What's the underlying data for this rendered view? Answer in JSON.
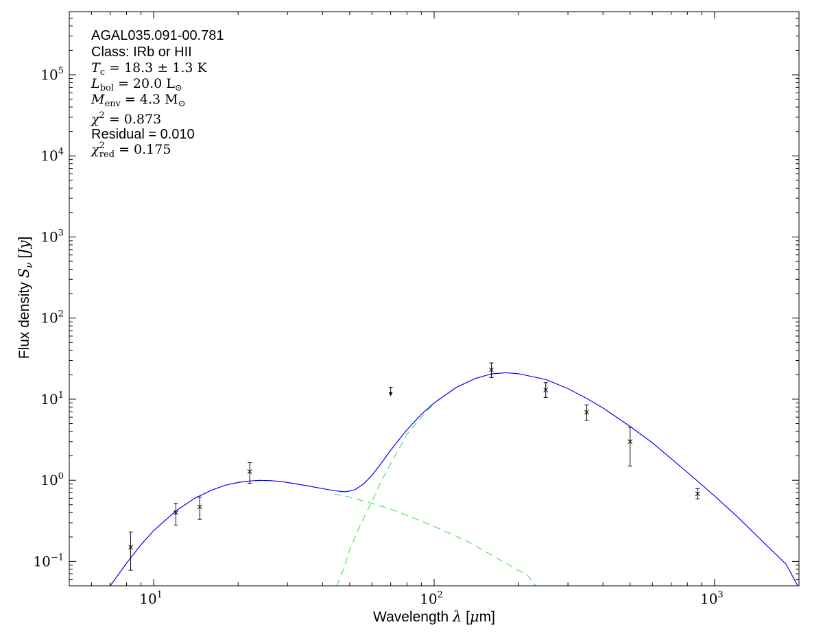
{
  "chart_data": {
    "type": "line",
    "x_scale": "log",
    "y_scale": "log",
    "xlim": [
      5,
      2000
    ],
    "ylim": [
      0.05,
      600000
    ],
    "grid": false,
    "xlabel": {
      "prefix": "Wavelength ",
      "symbol": "λ",
      "suffix": " [",
      "unit_greek": "μ",
      "unit_rest": "m]"
    },
    "ylabel": {
      "prefix": "Flux density ",
      "symbol": "S",
      "sub": "ν",
      "suffix": " [",
      "unit": "Jy",
      "close": "]"
    },
    "x_ticks": [
      {
        "value": 10,
        "base": "10",
        "exp": "1"
      },
      {
        "value": 100,
        "base": "10",
        "exp": "2"
      },
      {
        "value": 1000,
        "base": "10",
        "exp": "3"
      }
    ],
    "y_ticks": [
      {
        "value": 0.1,
        "base": "10",
        "exp": "−1"
      },
      {
        "value": 1,
        "base": "10",
        "exp": "0"
      },
      {
        "value": 10,
        "base": "10",
        "exp": "1"
      },
      {
        "value": 100,
        "base": "10",
        "exp": "2"
      },
      {
        "value": 1000,
        "base": "10",
        "exp": "3"
      },
      {
        "value": 10000,
        "base": "10",
        "exp": "4"
      },
      {
        "value": 100000,
        "base": "10",
        "exp": "5"
      }
    ],
    "annotations": {
      "source": "AGAL035.091-00.781",
      "class": "Class: IRb or HII",
      "tc": {
        "sym": "T",
        "sub": "c",
        "val": " = 18.3 ± 1.3 K"
      },
      "lbol": {
        "sym": "L",
        "sub": "bol",
        "val": " = 20.0 L",
        "unitsub": "⊙"
      },
      "menv": {
        "sym": "M",
        "sub": "env",
        "val": " = 4.3 M",
        "unitsub": "⊙"
      },
      "chi2": {
        "sym": "χ",
        "sup": "2",
        "val": " = 0.873"
      },
      "residual": "Residual = 0.010",
      "chi2red": {
        "sym": "χ",
        "sup": "2",
        "sub": "red",
        "val": " = 0.175"
      }
    },
    "data_points": [
      {
        "x": 8.28,
        "y": 0.15,
        "ylow": 0.078,
        "yhigh": 0.23
      },
      {
        "x": 12.0,
        "y": 0.4,
        "ylow": 0.28,
        "yhigh": 0.52
      },
      {
        "x": 14.6,
        "y": 0.47,
        "ylow": 0.33,
        "yhigh": 0.62
      },
      {
        "x": 22.0,
        "y": 1.28,
        "ylow": 0.92,
        "yhigh": 1.65
      },
      {
        "x": 160,
        "y": 23,
        "ylow": 18.5,
        "yhigh": 28
      },
      {
        "x": 250,
        "y": 13,
        "ylow": 10.5,
        "yhigh": 16
      },
      {
        "x": 350,
        "y": 6.9,
        "ylow": 5.5,
        "yhigh": 8.5
      },
      {
        "x": 500,
        "y": 3.0,
        "ylow": 1.5,
        "yhigh": 4.5
      },
      {
        "x": 870,
        "y": 0.68,
        "ylow": 0.59,
        "yhigh": 0.79
      }
    ],
    "upper_limits": [
      {
        "x": 70,
        "y": 13.5
      }
    ],
    "series": [
      {
        "style": "solid",
        "color": "#0000ff",
        "points": [
          [
            7.0,
            0.05
          ],
          [
            8.0,
            0.095
          ],
          [
            9.0,
            0.16
          ],
          [
            10,
            0.24
          ],
          [
            12,
            0.42
          ],
          [
            14,
            0.6
          ],
          [
            16,
            0.75
          ],
          [
            18,
            0.87
          ],
          [
            20,
            0.94
          ],
          [
            22,
            0.98
          ],
          [
            24,
            0.995
          ],
          [
            26,
            0.99
          ],
          [
            28,
            0.97
          ],
          [
            30,
            0.94
          ],
          [
            35,
            0.86
          ],
          [
            40,
            0.79
          ],
          [
            44,
            0.745
          ],
          [
            48,
            0.72
          ],
          [
            52,
            0.76
          ],
          [
            56,
            0.9
          ],
          [
            60,
            1.15
          ],
          [
            65,
            1.65
          ],
          [
            70,
            2.35
          ],
          [
            80,
            4.2
          ],
          [
            90,
            6.5
          ],
          [
            100,
            9.0
          ],
          [
            120,
            14.0
          ],
          [
            140,
            18.0
          ],
          [
            160,
            20.5
          ],
          [
            180,
            21.2
          ],
          [
            200,
            20.6
          ],
          [
            250,
            17.5
          ],
          [
            300,
            13.5
          ],
          [
            350,
            10.2
          ],
          [
            400,
            7.8
          ],
          [
            500,
            4.6
          ],
          [
            600,
            2.9
          ],
          [
            700,
            1.85
          ],
          [
            800,
            1.25
          ],
          [
            900,
            0.88
          ],
          [
            1000,
            0.64
          ],
          [
            1200,
            0.36
          ],
          [
            1500,
            0.17
          ],
          [
            1800,
            0.092
          ],
          [
            1980,
            0.05
          ]
        ]
      },
      {
        "style": "dashed",
        "color": "#55e055",
        "points": [
          [
            44,
            0.68
          ],
          [
            50,
            0.62
          ],
          [
            60,
            0.52
          ],
          [
            70,
            0.44
          ],
          [
            80,
            0.37
          ],
          [
            100,
            0.27
          ],
          [
            130,
            0.18
          ],
          [
            160,
            0.12
          ],
          [
            200,
            0.077
          ],
          [
            215,
            0.068
          ],
          [
            230,
            0.05
          ]
        ]
      },
      {
        "style": "dashed",
        "color": "#55e055",
        "points": [
          [
            45,
            0.05
          ],
          [
            48,
            0.088
          ],
          [
            50,
            0.14
          ],
          [
            55,
            0.3
          ],
          [
            60,
            0.55
          ],
          [
            65,
            1.0
          ],
          [
            70,
            1.6
          ],
          [
            80,
            3.7
          ],
          [
            90,
            6.0
          ],
          [
            100,
            8.8
          ]
        ]
      }
    ]
  }
}
